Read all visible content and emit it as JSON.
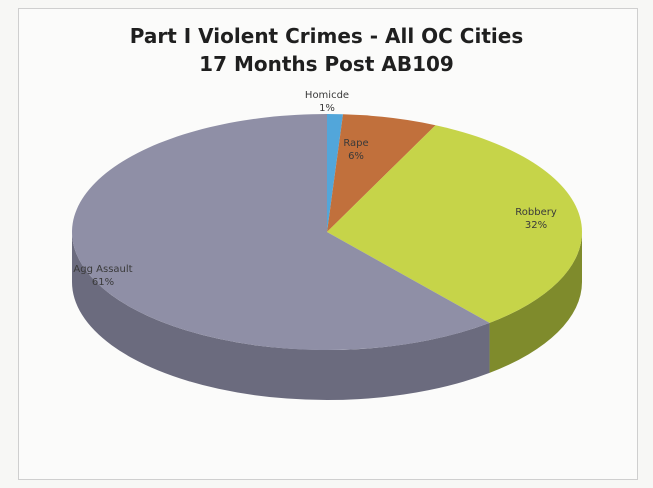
{
  "chart_data": {
    "type": "pie",
    "title": "Part I Violent Crimes - All OC Cities",
    "subtitle": "17 Months Post AB109",
    "slices": [
      {
        "label": "Homicde",
        "pct_text": "1%",
        "value": 1,
        "color": "#52a6da",
        "side": "#3b7fa8"
      },
      {
        "label": "Rape",
        "pct_text": "6%",
        "value": 6,
        "color": "#c1703c",
        "side": "#8f5028"
      },
      {
        "label": "Robbery",
        "pct_text": "32%",
        "value": 32,
        "color": "#c6d449",
        "side": "#7f8b2c"
      },
      {
        "label": "Agg Assault",
        "pct_text": "61%",
        "value": 61,
        "color": "#8f8fa6",
        "side": "#6b6b7e"
      }
    ]
  }
}
